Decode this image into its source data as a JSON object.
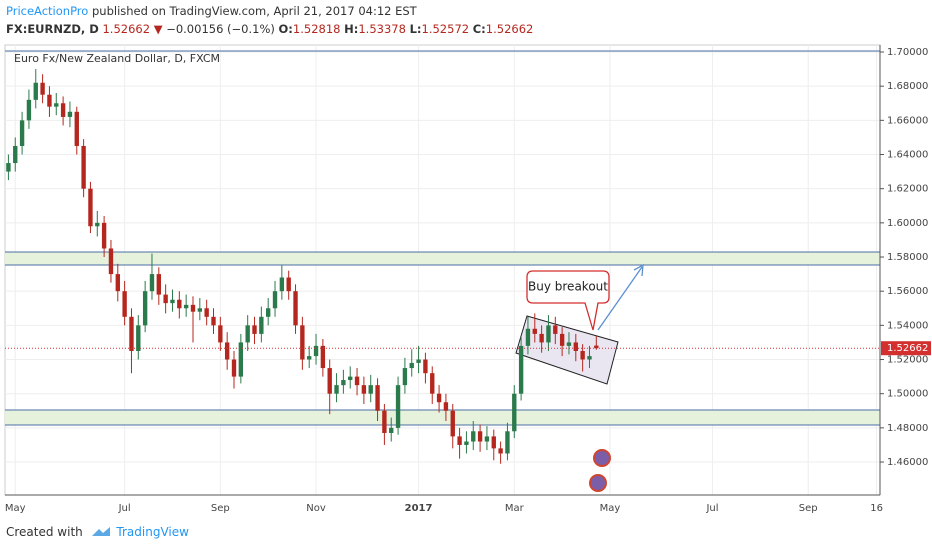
{
  "header": {
    "author": "PriceActionPro",
    "published": "published on TradingView.com, April 21, 2017 04:12 EST",
    "symbol": "FX:EURNZD, D",
    "last": "1.52662",
    "arrow": "▼",
    "change": "−0.00156 (−0.1%)",
    "ohlc": [
      {
        "label": "O:",
        "value": "1.52818"
      },
      {
        "label": "H:",
        "value": "1.53378"
      },
      {
        "label": "L:",
        "value": "1.52572"
      },
      {
        "label": "C:",
        "value": "1.52662"
      }
    ]
  },
  "footer": {
    "created": "Created with",
    "brand": "TradingView"
  },
  "chart_data": {
    "type": "candlestick",
    "title": "Euro Fx/New Zealand Dollar, D, FXCM",
    "annotation": "Buy breakout",
    "up_color": "#2b7a4b",
    "down_color": "#b5271e",
    "grid": true,
    "ylim": [
      1.4407,
      1.7041
    ],
    "yticks": [
      {
        "value": 1.46,
        "label": "1.46000"
      },
      {
        "value": 1.48,
        "label": "1.48000"
      },
      {
        "value": 1.5,
        "label": "1.50000"
      },
      {
        "value": 1.52,
        "label": "1.52000"
      },
      {
        "value": 1.54,
        "label": "1.54000"
      },
      {
        "value": 1.56,
        "label": "1.56000"
      },
      {
        "value": 1.58,
        "label": "1.58000"
      },
      {
        "value": 1.6,
        "label": "1.60000"
      },
      {
        "value": 1.62,
        "label": "1.62000"
      },
      {
        "value": 1.64,
        "label": "1.64000"
      },
      {
        "value": 1.66,
        "label": "1.66000"
      },
      {
        "value": 1.68,
        "label": "1.68000"
      },
      {
        "value": 1.7,
        "label": "1.70000"
      }
    ],
    "last_price": {
      "value": 1.52662,
      "label": "1.52662"
    },
    "categories": [
      null,
      "May",
      null,
      null,
      null,
      null,
      null,
      null,
      null,
      null,
      null,
      null,
      null,
      null,
      null,
      null,
      null,
      "Jul",
      null,
      null,
      null,
      null,
      null,
      null,
      null,
      null,
      null,
      null,
      null,
      null,
      null,
      "Sep",
      null,
      null,
      null,
      null,
      null,
      null,
      null,
      null,
      null,
      null,
      null,
      null,
      null,
      "Nov",
      null,
      null,
      null,
      null,
      null,
      null,
      null,
      null,
      null,
      null,
      null,
      null,
      null,
      null,
      "2017",
      null,
      null,
      null,
      null,
      null,
      null,
      null,
      null,
      null,
      null,
      null,
      null,
      null,
      "Mar",
      null,
      null,
      null,
      null,
      null,
      null,
      null,
      null,
      null,
      null,
      null,
      null,
      null,
      "May",
      null,
      null,
      null,
      null,
      null,
      null,
      null,
      null,
      null,
      null,
      null,
      null,
      null,
      null,
      "Jul",
      null,
      null,
      null,
      null,
      null,
      null,
      null,
      null,
      null,
      null,
      null,
      null,
      null,
      "Sep",
      null,
      null,
      null,
      null,
      null,
      null,
      null,
      null,
      null,
      "16"
    ],
    "open": [
      1.63,
      1.635,
      1.645,
      1.66,
      1.672,
      1.682,
      1.675,
      1.668,
      1.67,
      1.662,
      1.665,
      1.645,
      1.62,
      1.598,
      1.6,
      1.585,
      1.57,
      1.56,
      1.545,
      1.525,
      1.54,
      1.56,
      1.57,
      1.558,
      1.553,
      1.555,
      1.55,
      1.552,
      1.548,
      1.55,
      1.545,
      1.54,
      1.53,
      1.52,
      1.51,
      1.53,
      1.54,
      1.535,
      1.545,
      1.55,
      1.56,
      1.568,
      1.56,
      1.54,
      1.52,
      1.522,
      1.528,
      1.515,
      1.5,
      1.505,
      1.508,
      1.51,
      1.505,
      1.5,
      1.505,
      1.49,
      1.477,
      1.48,
      1.505,
      1.515,
      1.518,
      1.52,
      1.512,
      1.5,
      1.495,
      1.49,
      1.475,
      1.47,
      1.472,
      1.478,
      1.472,
      1.475,
      1.468,
      1.465,
      1.478,
      1.5,
      1.528,
      1.538,
      1.535,
      1.53,
      1.54,
      1.535,
      1.528,
      1.53,
      1.525,
      1.52,
      1.52818,
      null,
      null,
      null,
      null,
      null,
      null,
      null,
      null,
      null,
      null,
      null,
      null,
      null,
      null,
      null,
      null,
      null,
      null,
      null,
      null,
      null,
      null,
      null,
      null,
      null,
      null,
      null,
      null,
      null,
      null,
      null,
      null,
      null,
      null,
      null,
      null,
      null,
      null,
      null,
      null,
      null
    ],
    "high": [
      1.64,
      1.65,
      1.665,
      1.678,
      1.69,
      1.687,
      1.68,
      1.676,
      1.674,
      1.671,
      1.668,
      1.649,
      1.624,
      1.607,
      1.604,
      1.59,
      1.576,
      1.566,
      1.55,
      1.546,
      1.566,
      1.582,
      1.574,
      1.564,
      1.561,
      1.56,
      1.558,
      1.557,
      1.556,
      1.555,
      1.55,
      1.545,
      1.536,
      1.525,
      1.535,
      1.546,
      1.545,
      1.551,
      1.556,
      1.566,
      1.575,
      1.572,
      1.564,
      1.545,
      1.528,
      1.535,
      1.532,
      1.52,
      1.512,
      1.514,
      1.516,
      1.515,
      1.51,
      1.511,
      1.509,
      1.494,
      1.486,
      1.51,
      1.521,
      1.526,
      1.528,
      1.524,
      1.516,
      1.505,
      1.5,
      1.494,
      1.48,
      1.478,
      1.484,
      1.482,
      1.481,
      1.479,
      1.472,
      1.483,
      1.505,
      1.533,
      1.545,
      1.547,
      1.54,
      1.546,
      1.545,
      1.539,
      1.536,
      1.535,
      1.529,
      1.528,
      1.53378,
      null,
      null,
      null,
      null,
      null,
      null,
      null,
      null,
      null,
      null,
      null,
      null,
      null,
      null,
      null,
      null,
      null,
      null,
      null,
      null,
      null,
      null,
      null,
      null,
      null,
      null,
      null,
      null,
      null,
      null,
      null,
      null,
      null,
      null,
      null,
      null,
      null,
      null,
      null,
      null,
      null
    ],
    "low": [
      1.625,
      1.63,
      1.64,
      1.655,
      1.667,
      1.67,
      1.662,
      1.663,
      1.657,
      1.656,
      1.64,
      1.615,
      1.594,
      1.592,
      1.58,
      1.565,
      1.554,
      1.54,
      1.512,
      1.52,
      1.536,
      1.555,
      1.552,
      1.547,
      1.548,
      1.544,
      1.545,
      1.53,
      1.543,
      1.54,
      1.535,
      1.525,
      1.514,
      1.503,
      1.506,
      1.525,
      1.529,
      1.53,
      1.54,
      1.545,
      1.555,
      1.555,
      1.535,
      1.514,
      1.515,
      1.517,
      1.51,
      1.488,
      1.495,
      1.5,
      1.503,
      1.499,
      1.494,
      1.495,
      1.484,
      1.47,
      1.472,
      1.476,
      1.5,
      1.51,
      1.512,
      1.506,
      1.494,
      1.489,
      1.484,
      1.468,
      1.462,
      1.465,
      1.467,
      1.466,
      1.467,
      1.461,
      1.459,
      1.461,
      1.474,
      1.496,
      1.523,
      1.53,
      1.524,
      1.525,
      1.529,
      1.522,
      1.523,
      1.519,
      1.513,
      1.515,
      1.52572,
      null,
      null,
      null,
      null,
      null,
      null,
      null,
      null,
      null,
      null,
      null,
      null,
      null,
      null,
      null,
      null,
      null,
      null,
      null,
      null,
      null,
      null,
      null,
      null,
      null,
      null,
      null,
      null,
      null,
      null,
      null,
      null,
      null,
      null,
      null,
      null,
      null,
      null,
      null,
      null,
      null
    ],
    "close": [
      1.635,
      1.645,
      1.66,
      1.672,
      1.682,
      1.675,
      1.668,
      1.67,
      1.662,
      1.665,
      1.645,
      1.62,
      1.598,
      1.6,
      1.585,
      1.57,
      1.56,
      1.545,
      1.525,
      1.54,
      1.56,
      1.57,
      1.558,
      1.553,
      1.555,
      1.55,
      1.552,
      1.548,
      1.55,
      1.545,
      1.54,
      1.53,
      1.52,
      1.51,
      1.53,
      1.54,
      1.535,
      1.545,
      1.55,
      1.56,
      1.568,
      1.56,
      1.54,
      1.52,
      1.522,
      1.528,
      1.515,
      1.5,
      1.505,
      1.508,
      1.51,
      1.505,
      1.5,
      1.505,
      1.49,
      1.477,
      1.48,
      1.505,
      1.515,
      1.518,
      1.52,
      1.512,
      1.5,
      1.495,
      1.49,
      1.475,
      1.47,
      1.472,
      1.478,
      1.472,
      1.475,
      1.468,
      1.465,
      1.478,
      1.5,
      1.528,
      1.538,
      1.535,
      1.53,
      1.54,
      1.535,
      1.528,
      1.53,
      1.525,
      1.52,
      1.522,
      1.52662,
      null,
      null,
      null,
      null,
      null,
      null,
      null,
      null,
      null,
      null,
      null,
      null,
      null,
      null,
      null,
      null,
      null,
      null,
      null,
      null,
      null,
      null,
      null,
      null,
      null,
      null,
      null,
      null,
      null,
      null,
      null,
      null,
      null,
      null,
      null,
      null,
      null,
      null,
      null,
      null,
      null
    ]
  }
}
